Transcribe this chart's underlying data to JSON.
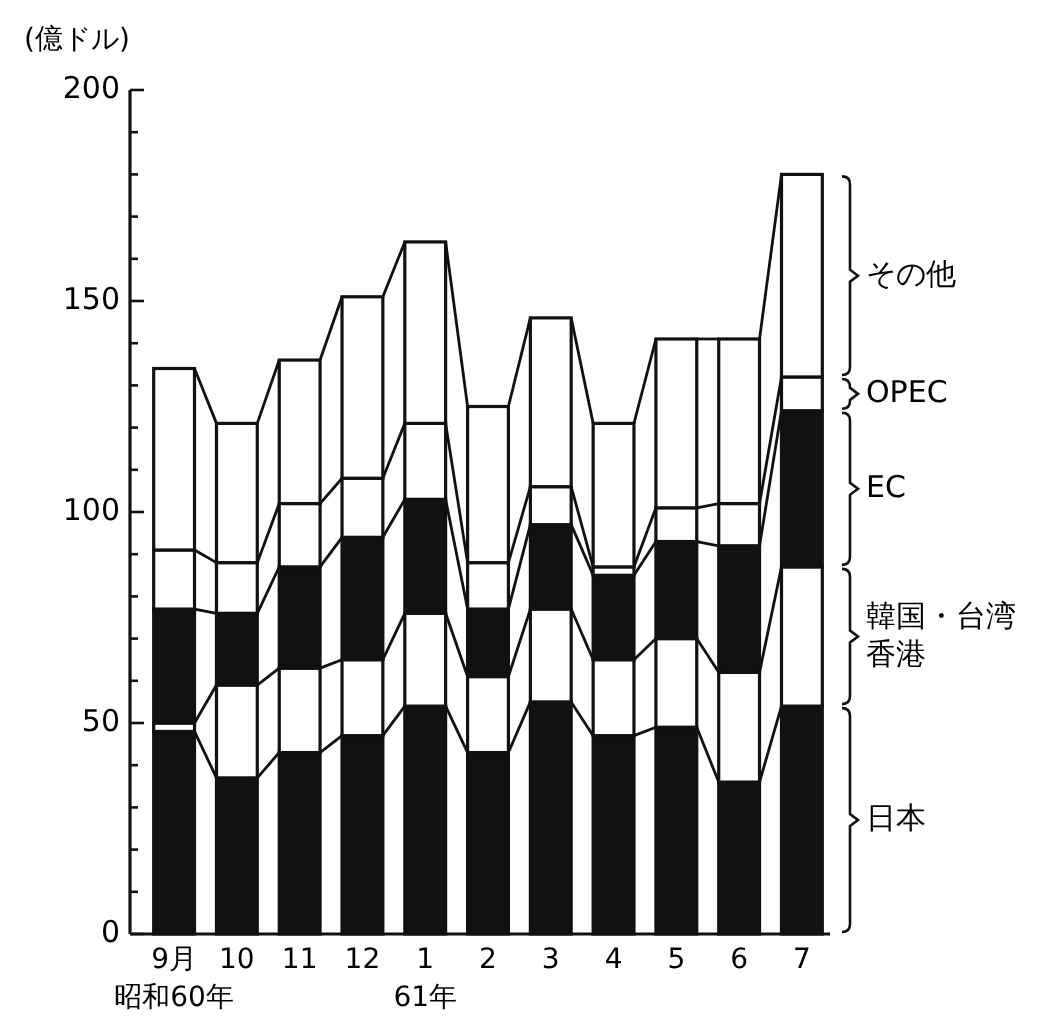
{
  "chart_data": {
    "type": "bar",
    "stacked": true,
    "ylabel": "(億ドル)",
    "categories": [
      "9月",
      "10",
      "11",
      "12",
      "1",
      "2",
      "3",
      "4",
      "5",
      "6",
      "7"
    ],
    "series": [
      {
        "name": "日本",
        "color": "#111111",
        "values": [
          48,
          37,
          43,
          47,
          54,
          43,
          55,
          47,
          49,
          36,
          54
        ]
      },
      {
        "name": "韓国・台湾香港",
        "color": "#ffffff",
        "values": [
          2,
          22,
          20,
          18,
          22,
          18,
          22,
          18,
          21,
          26,
          33
        ]
      },
      {
        "name": "EC",
        "color": "#111111",
        "values": [
          27,
          17,
          24,
          29,
          27,
          16,
          20,
          20,
          23,
          30,
          37
        ]
      },
      {
        "name": "OPEC",
        "color": "#ffffff",
        "values": [
          14,
          12,
          15,
          14,
          18,
          11,
          9,
          2,
          8,
          10,
          8
        ]
      },
      {
        "name": "その他",
        "color": "#ffffff",
        "values": [
          43,
          33,
          34,
          43,
          43,
          37,
          40,
          34,
          40,
          39,
          48
        ]
      }
    ],
    "ylim": [
      0,
      200
    ],
    "yticks": [
      0,
      {
        "value": 10,
        "label": null
      },
      {
        "value": 20,
        "label": null
      },
      {
        "value": 30,
        "label": null
      },
      {
        "value": 40,
        "label": null
      },
      50,
      {
        "value": 60,
        "label": null
      },
      {
        "value": 70,
        "label": null
      },
      {
        "value": 80,
        "label": null
      },
      {
        "value": 90,
        "label": null
      },
      100,
      {
        "value": 110,
        "label": null
      },
      {
        "value": 120,
        "label": null
      },
      {
        "value": 130,
        "label": null
      },
      {
        "value": 140,
        "label": null
      },
      150,
      {
        "value": 160,
        "label": null
      },
      {
        "value": 170,
        "label": null
      },
      {
        "value": 180,
        "label": null
      },
      {
        "value": 190,
        "label": null
      },
      200
    ],
    "legend": "right",
    "annotations": [
      "昭和60年",
      "61年"
    ]
  }
}
